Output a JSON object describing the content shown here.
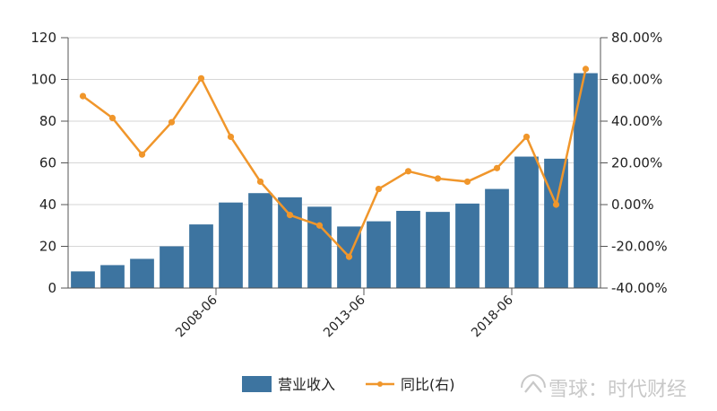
{
  "chart_data": {
    "type": "bar",
    "bar_color": "#3d74a0",
    "line_color": "#f0962b",
    "left_axis": {
      "ticks": [
        "0",
        "20",
        "40",
        "60",
        "80",
        "100",
        "120"
      ],
      "ylim": [
        0,
        120
      ]
    },
    "right_axis": {
      "ticks": [
        "-40.00%",
        "-20.00%",
        "0.00%",
        "20.00%",
        "40.00%",
        "60.00%",
        "80.00%"
      ],
      "ylim": [
        -40,
        80
      ]
    },
    "x_ticks": [
      {
        "label": "2008-06",
        "after_index": 4
      },
      {
        "label": "2013-06",
        "after_index": 9
      },
      {
        "label": "2018-06",
        "after_index": 14
      }
    ],
    "series": [
      {
        "name": "营业收入",
        "type": "bar",
        "axis": "left",
        "values": [
          8,
          11,
          14,
          20,
          30.5,
          41,
          45.5,
          43.5,
          39,
          29.5,
          32,
          37,
          36.5,
          40.5,
          47.5,
          63,
          62,
          103
        ]
      },
      {
        "name": "同比(右)",
        "type": "line",
        "axis": "right",
        "values": [
          52,
          41.5,
          24,
          39.5,
          60.5,
          32.5,
          11,
          -5,
          -10,
          -25,
          7.5,
          16,
          12.5,
          11,
          17.5,
          32.5,
          0,
          65
        ]
      }
    ],
    "legend": {
      "placement": "bottom"
    }
  },
  "watermark": {
    "text": "雪球：时代财经"
  }
}
